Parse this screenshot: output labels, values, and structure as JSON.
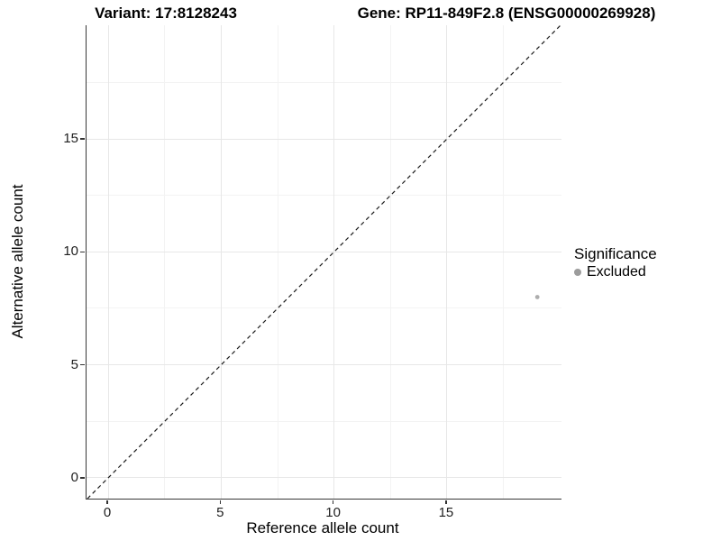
{
  "figure": {
    "title_left": "Variant: 17:8128243",
    "title_right": "Gene: RP11-849F2.8 (ENSG00000269928)"
  },
  "chart_data": {
    "type": "scatter",
    "title": "Variant: 17:8128243 — Gene: RP11-849F2.8 (ENSG00000269928)",
    "xlabel": "Reference allele count",
    "ylabel": "Alternative allele count",
    "xlim": [
      -0.96,
      20.07
    ],
    "ylim": [
      -0.92,
      20.03
    ],
    "x_ticks": [
      0,
      5,
      10,
      15
    ],
    "y_ticks": [
      0,
      5,
      10,
      15
    ],
    "x_minor_ticks": [
      2.5,
      7.5,
      12.5,
      17.5
    ],
    "y_minor_ticks": [
      2.5,
      7.5,
      12.5,
      17.5
    ],
    "grid": "major+minor",
    "points": [
      {
        "x": 19,
        "y": 8,
        "series": "Excluded",
        "color": "#adadad",
        "radius": 2.4
      }
    ],
    "reference_line": {
      "kind": "identity y=x",
      "style": "dashed",
      "color": "#1a1a1a"
    },
    "legend": {
      "title": "Significance",
      "position": "right",
      "entries": [
        {
          "label": "Excluded",
          "color": "#9c9c9c"
        }
      ]
    }
  }
}
